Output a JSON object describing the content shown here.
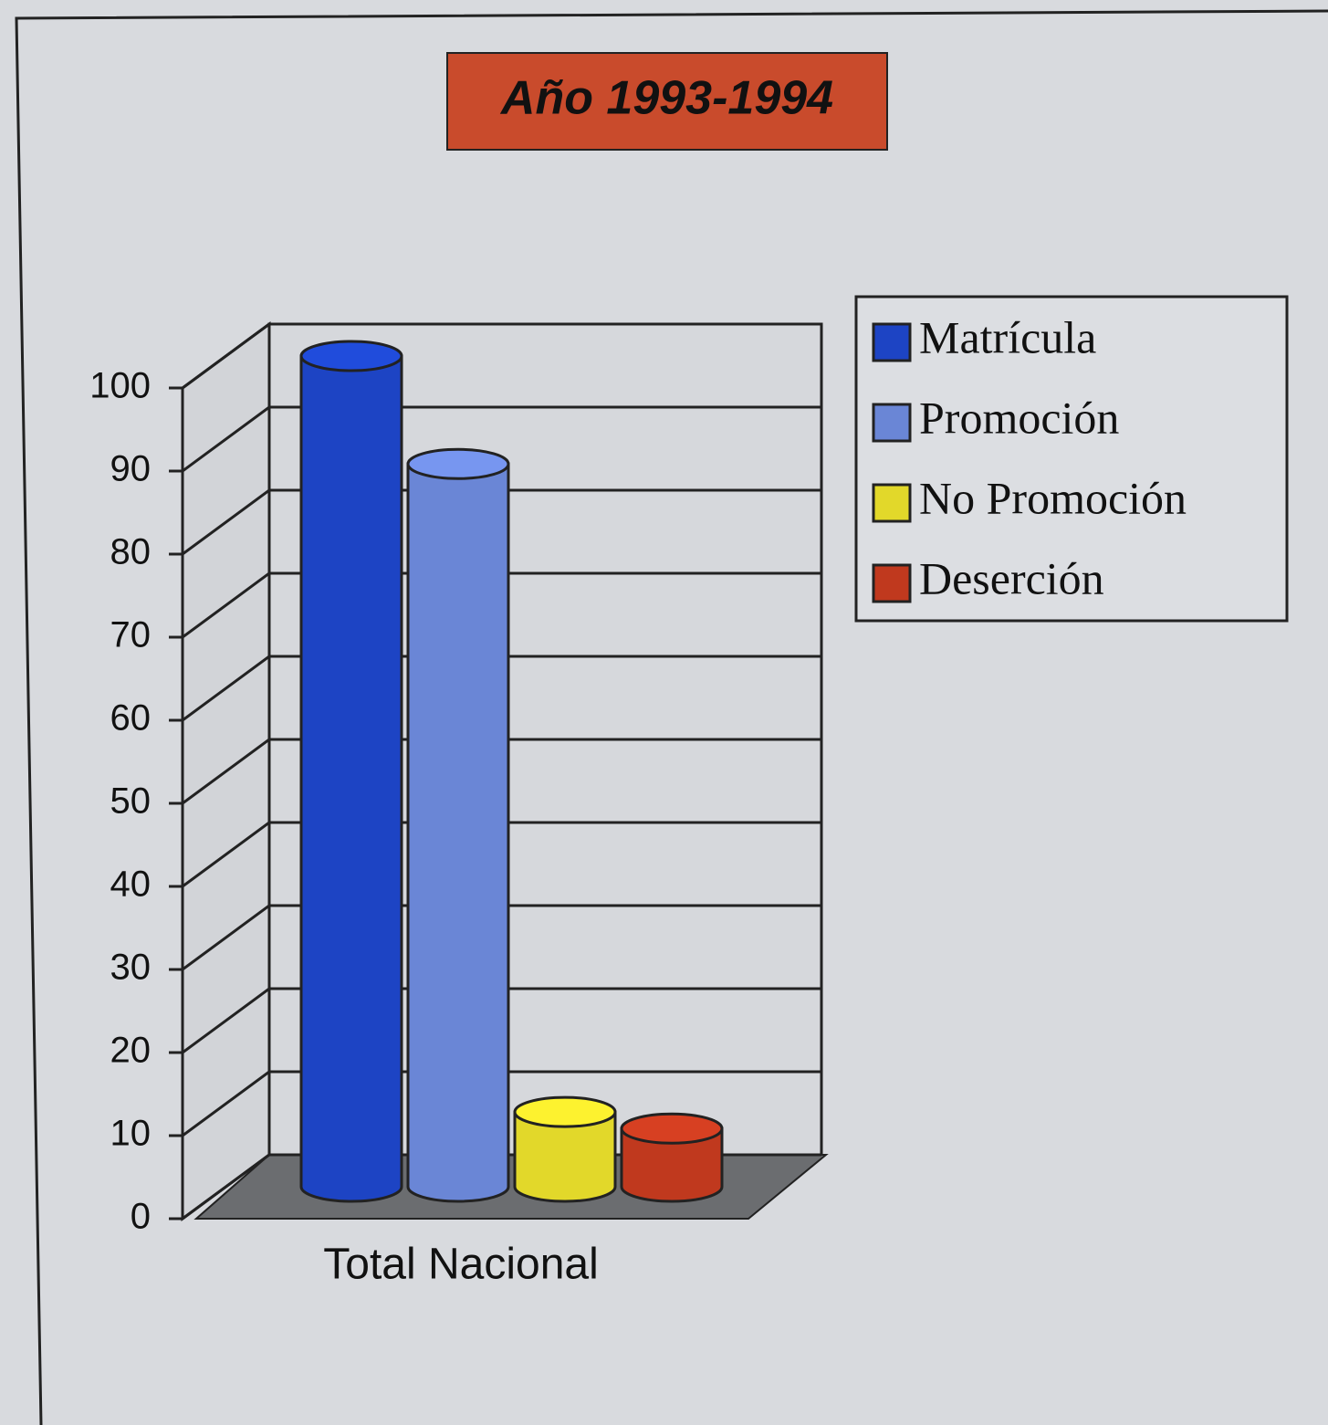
{
  "chart_data": {
    "type": "bar3d",
    "title": "Año 1993-1994",
    "categories": [
      "Total Nacional"
    ],
    "series": [
      {
        "name": "Matrícula",
        "color": "#1d44c4",
        "values": [
          100
        ]
      },
      {
        "name": "Promoción",
        "color": "#6a86d6",
        "values": [
          87
        ]
      },
      {
        "name": "No Promoción",
        "color": "#e2d82a",
        "values": [
          9
        ]
      },
      {
        "name": "Deserción",
        "color": "#c0391e",
        "values": [
          7
        ]
      }
    ],
    "ylim": [
      0,
      100
    ],
    "yticks": [
      0,
      10,
      20,
      30,
      40,
      50,
      60,
      70,
      80,
      90,
      100
    ],
    "grid": true,
    "legend": "right"
  }
}
